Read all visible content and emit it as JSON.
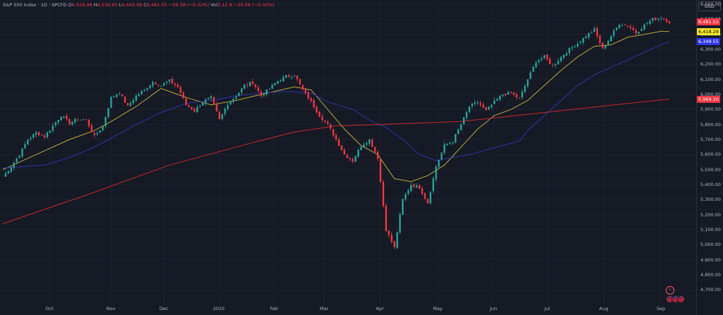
{
  "legend": {
    "title": "S&P 500 Index · 1D · SPCFD",
    "open_label": "O",
    "open": "6,529.08",
    "high_label": "H",
    "high": "6,532.65",
    "low_label": "L",
    "low": "6,443.98",
    "close_label": "C",
    "close": "6,481.51",
    "change": "−20.58 (−0.32%)",
    "vol_label": "Vol",
    "volume": "3.12 B",
    "vol_change": "−20.58 (−0.32%)"
  },
  "currency_label": "USD",
  "price_tags": [
    {
      "label": "6,481.51",
      "bg": "#f23645",
      "fg": "#ffffff",
      "value": 6481.51
    },
    {
      "label": "6,418.29",
      "bg": "#f5e52a",
      "fg": "#000000",
      "value": 6418.29
    },
    {
      "label": "6,349.55",
      "bg": "#2f38e8",
      "fg": "#ffffff",
      "value": 6349.55
    },
    {
      "label": "5,969.10",
      "bg": "#f23645",
      "fg": "#ffffff",
      "value": 5969.1
    }
  ],
  "flash_icon": "lightning-icon",
  "flag_icons": [
    "us-flag-icon",
    "us-flag-icon",
    "us-flag-icon"
  ],
  "colors": {
    "up": "#26a69a",
    "down": "#f23645",
    "ma_fast": "#b8a73a",
    "ma_mid": "#2f34a8",
    "ma_slow": "#c2272d",
    "grid": "#1f2330",
    "background": "#161a25"
  },
  "chart_data": {
    "type": "candlestick",
    "ylim": [
      4650,
      6600
    ],
    "y_ticks": [
      "6,600.00",
      "6,500.00",
      "6,400.00",
      "6,300.00",
      "6,200.00",
      "6,100.00",
      "6,000.00",
      "5,900.00",
      "5,800.00",
      "5,700.00",
      "5,600.00",
      "5,500.00",
      "5,400.00",
      "5,300.00",
      "5,200.00",
      "5,100.00",
      "5,000.00",
      "4,900.00",
      "4,800.00",
      "4,700.00"
    ],
    "x_labels": [
      "Oct",
      "Nov",
      "Dec",
      "2025",
      "Feb",
      "Mar",
      "Apr",
      "May",
      "Jun",
      "Jul",
      "Aug",
      "Sep"
    ],
    "close_anchors": [
      [
        0,
        5450
      ],
      [
        3,
        5520
      ],
      [
        6,
        5600
      ],
      [
        9,
        5700
      ],
      [
        12,
        5745
      ],
      [
        15,
        5720
      ],
      [
        18,
        5790
      ],
      [
        21,
        5860
      ],
      [
        24,
        5810
      ],
      [
        27,
        5835
      ],
      [
        30,
        5830
      ],
      [
        33,
        5720
      ],
      [
        36,
        5790
      ],
      [
        39,
        5980
      ],
      [
        42,
        6010
      ],
      [
        45,
        5920
      ],
      [
        48,
        5990
      ],
      [
        51,
        6030
      ],
      [
        54,
        6085
      ],
      [
        57,
        6060
      ],
      [
        60,
        6090
      ],
      [
        63,
        6050
      ],
      [
        66,
        5930
      ],
      [
        69,
        5890
      ],
      [
        72,
        5950
      ],
      [
        75,
        5980
      ],
      [
        78,
        5830
      ],
      [
        81,
        5940
      ],
      [
        84,
        5990
      ],
      [
        87,
        6060
      ],
      [
        90,
        6080
      ],
      [
        93,
        5990
      ],
      [
        96,
        6040
      ],
      [
        99,
        6090
      ],
      [
        102,
        6120
      ],
      [
        105,
        6130
      ],
      [
        108,
        6030
      ],
      [
        111,
        5950
      ],
      [
        114,
        5860
      ],
      [
        117,
        5800
      ],
      [
        120,
        5700
      ],
      [
        123,
        5600
      ],
      [
        126,
        5560
      ],
      [
        129,
        5660
      ],
      [
        132,
        5700
      ],
      [
        135,
        5580
      ],
      [
        138,
        5100
      ],
      [
        141,
        4980
      ],
      [
        144,
        5300
      ],
      [
        147,
        5400
      ],
      [
        150,
        5380
      ],
      [
        153,
        5280
      ],
      [
        156,
        5520
      ],
      [
        159,
        5660
      ],
      [
        162,
        5690
      ],
      [
        165,
        5800
      ],
      [
        168,
        5920
      ],
      [
        171,
        5950
      ],
      [
        174,
        5890
      ],
      [
        177,
        5950
      ],
      [
        180,
        6000
      ],
      [
        183,
        6010
      ],
      [
        186,
        5970
      ],
      [
        189,
        6100
      ],
      [
        192,
        6220
      ],
      [
        195,
        6250
      ],
      [
        198,
        6190
      ],
      [
        201,
        6250
      ],
      [
        204,
        6300
      ],
      [
        207,
        6340
      ],
      [
        210,
        6390
      ],
      [
        213,
        6430
      ],
      [
        216,
        6300
      ],
      [
        219,
        6390
      ],
      [
        222,
        6470
      ],
      [
        225,
        6460
      ],
      [
        228,
        6410
      ],
      [
        231,
        6460
      ],
      [
        234,
        6500
      ],
      [
        237,
        6510
      ],
      [
        240,
        6481.51
      ]
    ],
    "series": [
      {
        "name": "",
        "type": "ma",
        "color_key": "ma_fast",
        "points": [
          [
            0,
            5500
          ],
          [
            12,
            5600
          ],
          [
            24,
            5700
          ],
          [
            33,
            5760
          ],
          [
            39,
            5820
          ],
          [
            48,
            5920
          ],
          [
            57,
            6040
          ],
          [
            66,
            5980
          ],
          [
            75,
            5930
          ],
          [
            84,
            5960
          ],
          [
            93,
            6000
          ],
          [
            105,
            6050
          ],
          [
            111,
            6030
          ],
          [
            117,
            5900
          ],
          [
            123,
            5770
          ],
          [
            129,
            5660
          ],
          [
            135,
            5600
          ],
          [
            141,
            5440
          ],
          [
            147,
            5420
          ],
          [
            153,
            5460
          ],
          [
            159,
            5530
          ],
          [
            165,
            5650
          ],
          [
            171,
            5770
          ],
          [
            177,
            5860
          ],
          [
            183,
            5900
          ],
          [
            189,
            5960
          ],
          [
            195,
            6060
          ],
          [
            201,
            6160
          ],
          [
            207,
            6250
          ],
          [
            213,
            6320
          ],
          [
            219,
            6330
          ],
          [
            225,
            6380
          ],
          [
            231,
            6400
          ],
          [
            237,
            6420
          ],
          [
            240,
            6418.29
          ]
        ]
      },
      {
        "name": "",
        "type": "ma",
        "color_key": "ma_mid",
        "points": [
          [
            0,
            5510
          ],
          [
            15,
            5530
          ],
          [
            24,
            5580
          ],
          [
            33,
            5650
          ],
          [
            39,
            5710
          ],
          [
            48,
            5800
          ],
          [
            57,
            5880
          ],
          [
            66,
            5940
          ],
          [
            75,
            5960
          ],
          [
            84,
            5990
          ],
          [
            93,
            6010
          ],
          [
            102,
            6020
          ],
          [
            111,
            6010
          ],
          [
            117,
            5950
          ],
          [
            126,
            5900
          ],
          [
            132,
            5830
          ],
          [
            138,
            5780
          ],
          [
            144,
            5700
          ],
          [
            150,
            5600
          ],
          [
            156,
            5560
          ],
          [
            162,
            5580
          ],
          [
            168,
            5600
          ],
          [
            174,
            5630
          ],
          [
            180,
            5660
          ],
          [
            186,
            5690
          ],
          [
            189,
            5760
          ],
          [
            195,
            5860
          ],
          [
            201,
            5960
          ],
          [
            207,
            6060
          ],
          [
            213,
            6130
          ],
          [
            219,
            6180
          ],
          [
            225,
            6230
          ],
          [
            231,
            6280
          ],
          [
            237,
            6330
          ],
          [
            240,
            6349.55
          ]
        ]
      },
      {
        "name": "",
        "type": "ma",
        "color_key": "ma_slow",
        "points": [
          [
            0,
            5140
          ],
          [
            30,
            5330
          ],
          [
            60,
            5530
          ],
          [
            90,
            5680
          ],
          [
            105,
            5750
          ],
          [
            120,
            5790
          ],
          [
            135,
            5800
          ],
          [
            150,
            5810
          ],
          [
            165,
            5820
          ],
          [
            180,
            5850
          ],
          [
            195,
            5880
          ],
          [
            210,
            5910
          ],
          [
            225,
            5940
          ],
          [
            240,
            5969.1
          ]
        ]
      }
    ],
    "grid": true,
    "legend_position": "top-left"
  }
}
